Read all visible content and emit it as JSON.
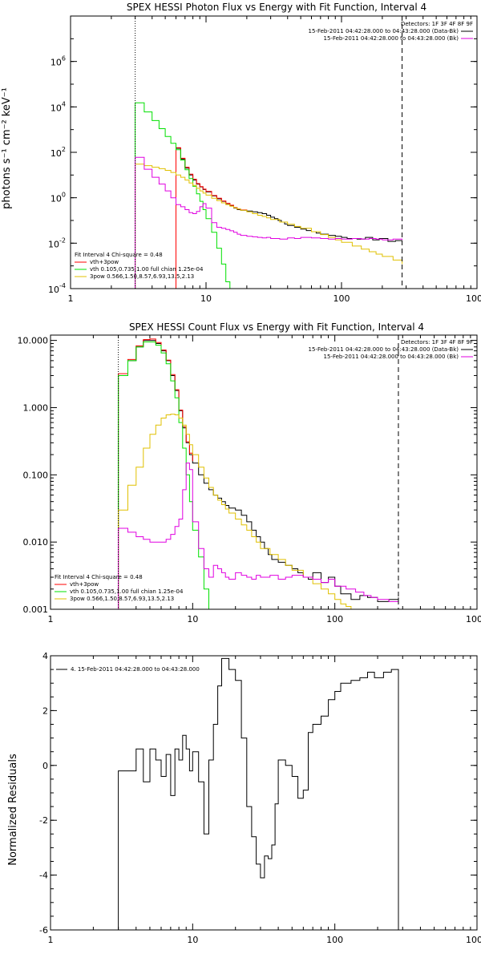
{
  "colors": {
    "data_black": "#000000",
    "model_red": "#ff0000",
    "vth_green": "#00e000",
    "pow_yellow": "#e0c000",
    "bkg_magenta": "#e000e0"
  },
  "chart_data": [
    {
      "type": "line",
      "title": "SPEX HESSI Photon Flux vs Energy with Fit Function, Interval 4",
      "ylabel": "photons s⁻¹ cm⁻² keV⁻¹",
      "xlabel": "",
      "xscale": "log",
      "yscale": "log",
      "xlim": [
        1,
        1000
      ],
      "ylim": [
        0.0001,
        100000000
      ],
      "x_ticks": [
        1,
        10,
        100,
        1000
      ],
      "x_tick_labels": [
        "1",
        "10",
        "100",
        "1000"
      ],
      "y_ticks": [
        0.0001,
        0.01,
        1,
        100,
        10000,
        1000000
      ],
      "vlines": [
        {
          "x": 3,
          "style": "dotted"
        },
        {
          "x": 280,
          "style": "dashed"
        }
      ],
      "legend_top_right": [
        "Detectors: 1F 3F 4F 8F 9F",
        "15-Feb-2011 04:42:28.000 to 04:43:28.000 (Data-Bk)",
        "15-Feb-2011 04:42:28.000 to 04:43:28.000 (Bk)"
      ],
      "legend_bottom_left": {
        "header": "Fit Interval  4   Chi-square = 0.48",
        "items": [
          {
            "label": "vth+3pow",
            "color": "#ff0000"
          },
          {
            "label": "vth 0.105,0.735,1.00  full chian 1.25e-04",
            "color": "#00e000"
          },
          {
            "label": "3pow 0.566,1.50,8.57,6.93,13.5,2.13",
            "color": "#e0c000"
          }
        ]
      },
      "series": [
        {
          "color": "#000000",
          "step": true,
          "x": [
            6,
            6.5,
            7,
            7.5,
            8,
            8.5,
            9,
            9.5,
            10,
            11,
            12,
            13,
            14,
            15,
            16,
            17,
            18,
            20,
            22,
            24,
            26,
            28,
            30,
            32,
            34,
            36,
            38,
            40,
            45,
            50,
            55,
            60,
            65,
            70,
            80,
            90,
            100,
            110,
            130,
            150,
            170,
            190,
            220,
            250,
            280
          ],
          "y": [
            150,
            50,
            20,
            10,
            6,
            4,
            3,
            2.3,
            1.8,
            1.2,
            0.9,
            0.7,
            0.55,
            0.45,
            0.35,
            0.3,
            0.28,
            0.26,
            0.24,
            0.22,
            0.2,
            0.17,
            0.14,
            0.12,
            0.1,
            0.085,
            0.07,
            0.06,
            0.05,
            0.042,
            0.036,
            0.032,
            0.028,
            0.025,
            0.022,
            0.02,
            0.018,
            0.016,
            0.015,
            0.018,
            0.014,
            0.016,
            0.012,
            0.013,
            0.013
          ]
        },
        {
          "color": "#ff0000",
          "step": true,
          "x": [
            6,
            6.5,
            7,
            7.5,
            8,
            8.5,
            9,
            9.5,
            10,
            11,
            12,
            13,
            14,
            15,
            16,
            17,
            18,
            20
          ],
          "y": [
            160,
            55,
            22,
            11,
            6.5,
            4.2,
            3.1,
            2.4,
            1.9,
            1.25,
            0.95,
            0.72,
            0.57,
            0.47,
            0.37,
            0.32,
            0.29,
            0.27
          ]
        },
        {
          "color": "#00e000",
          "step": true,
          "x": [
            3,
            3.5,
            4,
            4.5,
            5,
            5.5,
            6,
            6.5,
            7,
            7.5,
            8,
            8.5,
            9,
            9.5,
            10,
            11,
            12,
            13,
            14,
            15
          ],
          "y": [
            15000,
            6000,
            2500,
            1100,
            500,
            250,
            130,
            45,
            17,
            7,
            3.2,
            1.5,
            0.7,
            0.3,
            0.12,
            0.03,
            0.006,
            0.0012,
            0.0002,
            3e-05
          ]
        },
        {
          "color": "#e0c000",
          "step": true,
          "x": [
            3,
            3.5,
            4,
            4.5,
            5,
            5.5,
            6,
            6.5,
            7,
            7.5,
            8,
            8.5,
            9,
            9.5,
            10,
            11,
            12,
            13,
            14,
            15,
            16,
            17,
            18,
            20,
            22,
            24,
            26,
            28,
            30,
            35,
            40,
            45,
            50,
            60,
            70,
            80,
            90,
            100,
            120,
            140,
            160,
            180,
            200,
            240,
            280
          ],
          "y": [
            30,
            26,
            22,
            19,
            16,
            13,
            10,
            8,
            6,
            4.5,
            3.5,
            2.6,
            2,
            1.6,
            1.3,
            0.95,
            0.75,
            0.6,
            0.5,
            0.42,
            0.36,
            0.32,
            0.28,
            0.24,
            0.2,
            0.17,
            0.15,
            0.13,
            0.11,
            0.085,
            0.068,
            0.055,
            0.045,
            0.032,
            0.024,
            0.018,
            0.014,
            0.011,
            0.0075,
            0.0055,
            0.0042,
            0.0033,
            0.0026,
            0.0018,
            0.0012
          ]
        },
        {
          "color": "#e000e0",
          "step": true,
          "x": [
            3,
            3.5,
            4,
            4.5,
            5,
            5.5,
            6,
            6.5,
            7,
            7.5,
            8,
            8.5,
            9,
            9.5,
            10,
            11,
            12,
            13,
            14,
            15,
            16,
            17,
            18,
            20,
            22,
            24,
            26,
            28,
            30,
            35,
            40,
            45,
            50,
            60,
            70,
            80,
            90,
            100,
            120,
            140,
            160,
            180,
            200,
            240,
            280
          ],
          "y": [
            60,
            18,
            8,
            4,
            2,
            1,
            0.5,
            0.4,
            0.3,
            0.22,
            0.2,
            0.25,
            0.4,
            0.55,
            0.35,
            0.08,
            0.05,
            0.045,
            0.04,
            0.035,
            0.03,
            0.025,
            0.022,
            0.02,
            0.019,
            0.018,
            0.017,
            0.018,
            0.016,
            0.015,
            0.017,
            0.016,
            0.018,
            0.017,
            0.016,
            0.015,
            0.016,
            0.015,
            0.016,
            0.015,
            0.016,
            0.015,
            0.014,
            0.015,
            0.014
          ]
        }
      ]
    },
    {
      "type": "line",
      "title": "SPEX HESSI Count Flux vs Energy with Fit Function, Interval 4",
      "ylabel": "",
      "xlabel": "",
      "xscale": "log",
      "yscale": "log",
      "xlim": [
        1,
        1000
      ],
      "ylim": [
        0.001,
        12
      ],
      "x_ticks": [
        1,
        10,
        100,
        1000
      ],
      "x_tick_labels": [
        "1",
        "10",
        "100",
        "1000"
      ],
      "y_ticks": [
        0.001,
        0.01,
        0.1,
        1,
        10
      ],
      "y_tick_labels": [
        "0.001",
        "0.010",
        "0.100",
        "1.000",
        "10.000"
      ],
      "vlines": [
        {
          "x": 3,
          "style": "dotted"
        },
        {
          "x": 280,
          "style": "dashed"
        }
      ],
      "legend_top_right": [
        "Detectors: 1F 3F 4F 8F 9F",
        "15-Feb-2011 04:42:28.000 to 04:43:28.000 (Data-Bk)",
        "15-Feb-2011 04:42:28.000 to 04:43:28.000 (Bk)"
      ],
      "legend_bottom_left": {
        "header": "Fit Interval  4   Chi-square = 0.48",
        "items": [
          {
            "label": "vth+3pow",
            "color": "#ff0000"
          },
          {
            "label": "vth 0.105,0.735,1.00  full chian 1.25e-04",
            "color": "#00e000"
          },
          {
            "label": "3pow 0.566,1.50,8.57,6.93,13.5,2.13",
            "color": "#e0c000"
          }
        ]
      },
      "series": [
        {
          "color": "#000000",
          "step": true,
          "x": [
            3,
            3.5,
            4,
            4.5,
            5,
            5.5,
            6,
            6.5,
            7,
            7.5,
            8,
            8.5,
            9,
            9.5,
            10,
            11,
            12,
            13,
            14,
            15,
            16,
            17,
            18,
            20,
            22,
            24,
            26,
            28,
            30,
            32,
            34,
            36,
            40,
            45,
            50,
            55,
            60,
            65,
            70,
            80,
            90,
            100,
            110,
            130,
            150,
            170,
            200,
            240,
            280
          ],
          "y": [
            3,
            5,
            8,
            10,
            10,
            9,
            7,
            5,
            3,
            1.8,
            0.9,
            0.5,
            0.3,
            0.2,
            0.15,
            0.1,
            0.075,
            0.06,
            0.05,
            0.045,
            0.04,
            0.035,
            0.032,
            0.03,
            0.025,
            0.02,
            0.015,
            0.012,
            0.01,
            0.008,
            0.0065,
            0.0055,
            0.005,
            0.0045,
            0.004,
            0.0035,
            0.003,
            0.0028,
            0.0035,
            0.0025,
            0.003,
            0.0022,
            0.0017,
            0.0014,
            0.0016,
            0.0015,
            0.0013,
            0.0014,
            0.0015
          ]
        },
        {
          "color": "#ff0000",
          "step": true,
          "x": [
            3,
            3.5,
            4,
            4.5,
            5,
            5.5,
            6,
            6.5,
            7,
            7.5,
            8,
            8.5,
            9,
            9.5,
            10
          ],
          "y": [
            3.2,
            5.2,
            8.3,
            10.3,
            10.5,
            9.3,
            7.2,
            5.1,
            3.1,
            1.85,
            0.92,
            0.52,
            0.31,
            0.21,
            0.16
          ]
        },
        {
          "color": "#00e000",
          "step": true,
          "x": [
            3,
            3.5,
            4,
            4.5,
            5,
            5.5,
            6,
            6.5,
            7,
            7.5,
            8,
            8.5,
            9,
            9.5,
            10,
            11,
            12,
            13,
            14
          ],
          "y": [
            3,
            5,
            8,
            9.5,
            9.5,
            8.5,
            6.5,
            4.5,
            2.5,
            1.4,
            0.6,
            0.25,
            0.1,
            0.04,
            0.015,
            0.006,
            0.002,
            0.001,
            0.0008
          ]
        },
        {
          "color": "#e0c000",
          "step": true,
          "x": [
            3,
            3.5,
            4,
            4.5,
            5,
            5.5,
            6,
            6.5,
            7,
            7.5,
            8,
            8.5,
            9,
            9.5,
            10,
            11,
            12,
            13,
            14,
            15,
            16,
            17,
            18,
            20,
            22,
            24,
            26,
            28,
            30,
            35,
            40,
            45,
            50,
            60,
            70,
            80,
            90,
            100,
            110,
            120,
            130
          ],
          "y": [
            0.03,
            0.07,
            0.13,
            0.25,
            0.4,
            0.55,
            0.7,
            0.78,
            0.8,
            0.78,
            0.7,
            0.55,
            0.4,
            0.28,
            0.2,
            0.13,
            0.09,
            0.065,
            0.05,
            0.042,
            0.036,
            0.031,
            0.027,
            0.022,
            0.018,
            0.015,
            0.012,
            0.01,
            0.008,
            0.0065,
            0.0055,
            0.0045,
            0.0038,
            0.003,
            0.0024,
            0.002,
            0.0017,
            0.0014,
            0.0012,
            0.0011,
            0.001
          ]
        },
        {
          "color": "#e000e0",
          "step": true,
          "x": [
            3,
            3.5,
            4,
            4.5,
            5,
            5.5,
            6,
            6.5,
            7,
            7.5,
            8,
            8.5,
            9,
            9.5,
            10,
            11,
            12,
            13,
            14,
            15,
            16,
            17,
            18,
            20,
            22,
            24,
            26,
            28,
            30,
            35,
            40,
            45,
            50,
            60,
            70,
            80,
            90,
            100,
            120,
            140,
            160,
            180,
            200,
            240,
            280
          ],
          "y": [
            0.016,
            0.014,
            0.012,
            0.011,
            0.01,
            0.01,
            0.01,
            0.011,
            0.013,
            0.017,
            0.022,
            0.06,
            0.15,
            0.12,
            0.02,
            0.008,
            0.004,
            0.003,
            0.0045,
            0.004,
            0.0035,
            0.003,
            0.0028,
            0.0035,
            0.0032,
            0.003,
            0.0028,
            0.0032,
            0.003,
            0.0032,
            0.0028,
            0.003,
            0.0032,
            0.003,
            0.0028,
            0.0025,
            0.0028,
            0.0022,
            0.002,
            0.0018,
            0.0016,
            0.0015,
            0.0014,
            0.0013,
            0.0012
          ]
        }
      ]
    },
    {
      "type": "line",
      "title": "",
      "ylabel": "Normalized Residuals",
      "xlabel": "",
      "xscale": "log",
      "yscale": "linear",
      "xlim": [
        1,
        1000
      ],
      "ylim": [
        -6,
        4
      ],
      "x_ticks": [
        1,
        10,
        100,
        1000
      ],
      "x_tick_labels": [
        "1",
        "10",
        "100",
        "1000"
      ],
      "y_ticks": [
        -6,
        -4,
        -2,
        0,
        2,
        4
      ],
      "y_tick_labels": [
        "-6",
        "-4",
        "-2",
        "0",
        "2",
        "4"
      ],
      "legend_top_left": "4. 15-Feb-2011 04:42:28.000 to 04:43:28.000",
      "series": [
        {
          "color": "#000000",
          "step": true,
          "x": [
            3,
            4,
            4.5,
            5,
            5.5,
            6,
            6.5,
            7,
            7.5,
            8,
            8.5,
            9,
            9.5,
            10,
            11,
            12,
            13,
            14,
            15,
            16,
            18,
            20,
            22,
            24,
            26,
            28,
            30,
            32,
            34,
            36,
            38,
            40,
            45,
            50,
            55,
            60,
            65,
            70,
            80,
            90,
            100,
            110,
            130,
            150,
            170,
            190,
            220,
            250,
            280
          ],
          "y": [
            -0.2,
            0.6,
            -0.6,
            0.6,
            0.2,
            -0.4,
            0.4,
            -1.1,
            0.6,
            0.2,
            1.1,
            0.6,
            -0.2,
            0.5,
            -0.6,
            -2.5,
            0.2,
            1.5,
            2.9,
            3.9,
            3.5,
            3.1,
            1.0,
            -1.5,
            -2.6,
            -3.6,
            -4.1,
            -3.3,
            -3.4,
            -2.9,
            -1.4,
            0.2,
            0.0,
            -0.4,
            -1.2,
            -0.9,
            1.2,
            1.5,
            1.8,
            2.4,
            2.7,
            3.0,
            3.1,
            3.2,
            3.4,
            3.2,
            3.4,
            3.5,
            -6
          ]
        }
      ]
    }
  ]
}
